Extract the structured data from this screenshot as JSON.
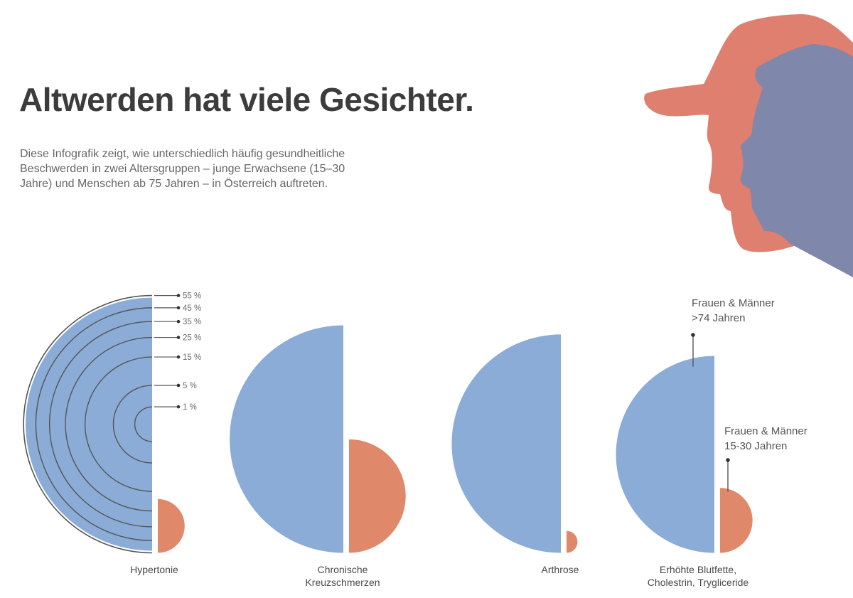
{
  "header": {
    "title": "Altwerden hat viele Gesichter.",
    "subtitle": "Diese Infografik zeigt, wie unterschiedlich häufig gesundheitliche Beschwerden in zwei Altersgruppen – junge Erwachsene (15–30 Jahre) und Menschen ab 75 Jahren – in Österreich auftreten."
  },
  "colors": {
    "older": "#8BACD6",
    "younger": "#E0886A",
    "head_front": "#DE7F6F",
    "head_back": "#7F87AA",
    "scale_line": "#555555"
  },
  "chart_data": {
    "type": "semicircle-area",
    "title": "Altwerden hat viele Gesichter.",
    "encoding": "semicircle area proportional to prevalence (%)",
    "categories": [
      [
        "Hypertonie"
      ],
      [
        "Chronische",
        "Kreuzschmerzen"
      ],
      [
        "Arthrose"
      ],
      [
        "Erhöhte Blutfette,",
        "Cholestrin, Trygliceride"
      ]
    ],
    "series": [
      {
        "name": "Frauen & Männer >74 Jahren",
        "legend_lines": [
          "Frauen & Männer",
          ">74  Jahren"
        ],
        "values": [
          53.2,
          43.0,
          39.6,
          32.2
        ]
      },
      {
        "name": "Frauen & Männer 15-30 Jahren",
        "legend_lines": [
          "Frauen & Männer",
          "15-30 Jahren"
        ],
        "values": [
          2.4,
          10.7,
          0.4,
          3.5
        ]
      }
    ],
    "scale_ticks": [
      55,
      45,
      35,
      25,
      15,
      5,
      1
    ],
    "scale_tick_labels": [
      "55 %",
      "45 %",
      "35 %",
      "25 %",
      "15 %",
      "5 %",
      "1 %"
    ],
    "unit": "%"
  }
}
